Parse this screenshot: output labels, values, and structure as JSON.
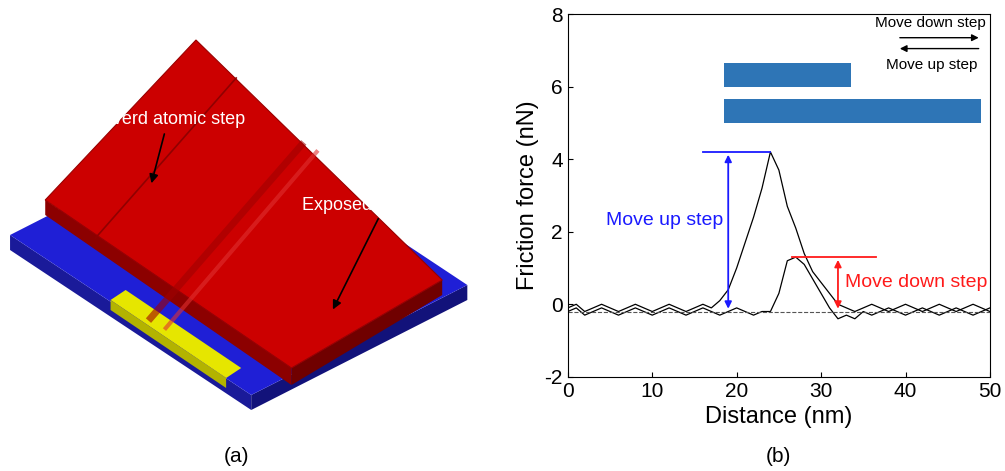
{
  "diagram": {
    "label": "(a)",
    "annotations": [
      "Coverd atomic step",
      "Exposed atomic step"
    ]
  },
  "chart_data": {
    "type": "line",
    "label": "(b)",
    "xlabel": "Distance (nm)",
    "ylabel": "Friction force (nN)",
    "xlim": [
      0,
      50
    ],
    "ylim": [
      -2,
      8
    ],
    "xticks": [
      0,
      10,
      20,
      30,
      40,
      50
    ],
    "yticks": [
      -2,
      0,
      2,
      4,
      6,
      8
    ],
    "x": [
      0,
      1,
      2,
      3,
      4,
      5,
      6,
      7,
      8,
      9,
      10,
      11,
      12,
      13,
      14,
      15,
      16,
      17,
      18,
      19,
      20,
      21,
      22,
      23,
      24,
      25,
      26,
      27,
      28,
      29,
      30,
      31,
      32,
      33,
      34,
      35,
      36,
      37,
      38,
      39,
      40,
      41,
      42,
      43,
      44,
      45,
      46,
      47,
      48,
      49,
      50
    ],
    "series": [
      {
        "color": "#000000",
        "values": [
          -0.1,
          0.0,
          -0.2,
          -0.1,
          0.0,
          -0.1,
          -0.2,
          -0.1,
          0.0,
          -0.1,
          -0.2,
          -0.1,
          0.0,
          -0.1,
          -0.2,
          -0.1,
          0.0,
          -0.1,
          0.1,
          0.4,
          1.0,
          1.7,
          2.4,
          3.2,
          4.2,
          3.7,
          2.7,
          2.1,
          1.4,
          0.9,
          0.6,
          0.3,
          0.0,
          -0.1,
          -0.2,
          -0.1,
          0.0,
          -0.1,
          -0.2,
          -0.1,
          0.0,
          -0.1,
          -0.2,
          -0.1,
          0.0,
          -0.1,
          -0.2,
          -0.1,
          0.0,
          -0.1,
          -0.2
        ]
      },
      {
        "color": "#000000",
        "values": [
          -0.2,
          -0.1,
          -0.3,
          -0.2,
          -0.1,
          -0.2,
          -0.3,
          -0.2,
          -0.1,
          -0.2,
          -0.3,
          -0.2,
          -0.1,
          -0.2,
          -0.3,
          -0.2,
          -0.1,
          -0.2,
          -0.3,
          -0.2,
          -0.1,
          -0.2,
          -0.3,
          -0.2,
          -0.2,
          0.3,
          1.2,
          1.3,
          1.1,
          0.7,
          0.3,
          -0.1,
          -0.4,
          -0.3,
          -0.4,
          -0.2,
          -0.3,
          -0.2,
          -0.1,
          -0.2,
          -0.3,
          -0.2,
          -0.1,
          -0.2,
          -0.3,
          -0.2,
          -0.1,
          -0.2,
          -0.3,
          -0.2,
          -0.1
        ]
      }
    ],
    "baseline": -0.2,
    "annotations": [
      {
        "text": "Move up step",
        "value": 4.2,
        "color": "#1a1aff"
      },
      {
        "text": "Move down step",
        "value": 1.3,
        "color": "#ff1a1a"
      }
    ],
    "inset": {
      "labels": [
        "Move down step",
        "Move up step"
      ],
      "color": "#2e75b6"
    }
  }
}
